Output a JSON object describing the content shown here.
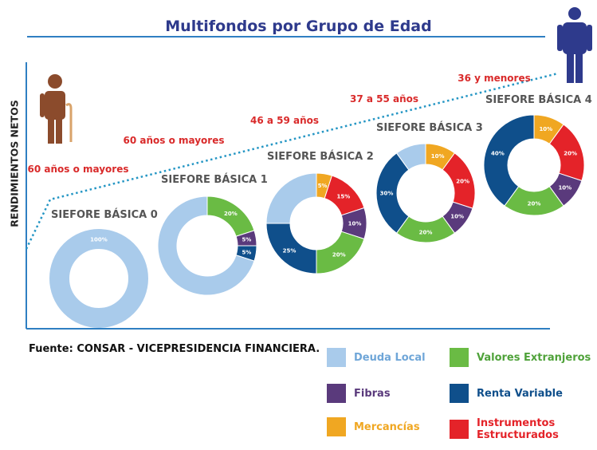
{
  "title": "Multifondos por Grupo de Edad",
  "ylabel": "RENDIMIENTOS NETOS",
  "source": "Fuente: CONSAR - VICEPRESIDENCIA FINANCIERA.",
  "colors": {
    "deuda_local": "#a9cbeb",
    "valores_extranjeros": "#6abb44",
    "fibras": "#5a3a7c",
    "renta_variable": "#0f4f8b",
    "mercancias": "#f0a722",
    "instrumentos_estructurados": "#e42329",
    "label_red": "#d92a2a",
    "title_blue": "#2e3a8c",
    "trend": "#2596c4"
  },
  "icons": {
    "old_person": "old-person-with-cane-icon",
    "young_person": "person-icon"
  },
  "chart_data": {
    "type": "pie",
    "title": "Multifondos por Grupo de Edad",
    "ylabel": "RENDIMIENTOS NETOS",
    "xlabel": "",
    "categories": [
      "Deuda Local",
      "Valores Extranjeros",
      "Fibras",
      "Renta Variable",
      "Mercancías",
      "Instrumentos Estructurados"
    ],
    "legend": [
      {
        "name": "Deuda Local",
        "color": "#a9cbeb"
      },
      {
        "name": "Valores Extranjeros",
        "color": "#6abb44"
      },
      {
        "name": "Fibras",
        "color": "#5a3a7c"
      },
      {
        "name": "Renta Variable",
        "color": "#0f4f8b"
      },
      {
        "name": "Mercancías",
        "color": "#f0a722"
      },
      {
        "name": "Instrumentos\nEstructurados",
        "color": "#e42329"
      }
    ],
    "legend_position": "bottom-right",
    "series": [
      {
        "name": "SIEFORE BÁSICA 0",
        "age_group": "60 años o mayores",
        "slices": [
          {
            "label": "100%",
            "value": 100,
            "category": "Deuda Local"
          }
        ]
      },
      {
        "name": "SIEFORE BÁSICA 1",
        "age_group": "60 años o mayores",
        "slices": [
          {
            "label": "20%",
            "value": 20,
            "category": "Valores Extranjeros"
          },
          {
            "label": "5%",
            "value": 5,
            "category": "Fibras"
          },
          {
            "label": "5%",
            "value": 5,
            "category": "Renta Variable"
          },
          {
            "label": "",
            "value": 70,
            "category": "Deuda Local"
          }
        ]
      },
      {
        "name": "SIEFORE BÁSICA 2",
        "age_group": "46 a 59 años",
        "slices": [
          {
            "label": "5%",
            "value": 5,
            "category": "Mercancías"
          },
          {
            "label": "15%",
            "value": 15,
            "category": "Instrumentos Estructurados"
          },
          {
            "label": "10%",
            "value": 10,
            "category": "Fibras"
          },
          {
            "label": "20%",
            "value": 20,
            "category": "Valores Extranjeros"
          },
          {
            "label": "25%",
            "value": 25,
            "category": "Renta Variable"
          },
          {
            "label": "",
            "value": 25,
            "category": "Deuda Local"
          }
        ]
      },
      {
        "name": "SIEFORE BÁSICA 3",
        "age_group": "37 a 55 años",
        "slices": [
          {
            "label": "10%",
            "value": 10,
            "category": "Mercancías"
          },
          {
            "label": "20%",
            "value": 20,
            "category": "Instrumentos Estructurados"
          },
          {
            "label": "10%",
            "value": 10,
            "category": "Fibras"
          },
          {
            "label": "20%",
            "value": 20,
            "category": "Valores Extranjeros"
          },
          {
            "label": "30%",
            "value": 30,
            "category": "Renta Variable"
          },
          {
            "label": "",
            "value": 10,
            "category": "Deuda Local"
          }
        ]
      },
      {
        "name": "SIEFORE BÁSICA 4",
        "age_group": "36 y menores",
        "slices": [
          {
            "label": "10%",
            "value": 10,
            "category": "Mercancías"
          },
          {
            "label": "20%",
            "value": 20,
            "category": "Instrumentos Estructurados"
          },
          {
            "label": "10%",
            "value": 10,
            "category": "Fibras"
          },
          {
            "label": "20%",
            "value": 20,
            "category": "Valores Extranjeros"
          },
          {
            "label": "40%",
            "value": 40,
            "category": "Renta Variable"
          }
        ]
      }
    ]
  }
}
